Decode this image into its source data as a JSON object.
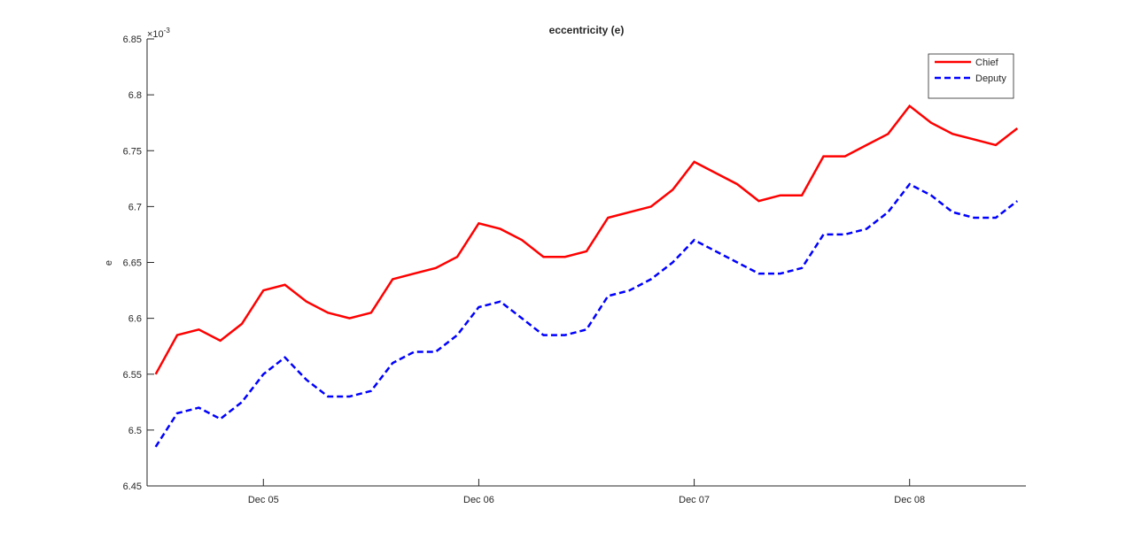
{
  "chart_data": {
    "type": "line",
    "title": "eccentricity (e)",
    "ylabel": "e",
    "y_multiplier": {
      "base": "×10",
      "exponent": "-3"
    },
    "x": [
      4.5,
      4.6,
      4.7,
      4.8,
      4.9,
      5.0,
      5.1,
      5.2,
      5.3,
      5.4,
      5.5,
      5.6,
      5.7,
      5.8,
      5.9,
      6.0,
      6.1,
      6.2,
      6.3,
      6.4,
      6.5,
      6.6,
      6.7,
      6.8,
      6.9,
      7.0,
      7.1,
      7.2,
      7.3,
      7.4,
      7.5,
      7.6,
      7.7,
      7.8,
      7.9,
      8.0,
      8.1,
      8.2,
      8.3,
      8.4,
      8.5
    ],
    "series": [
      {
        "name": "Chief",
        "color": "#ff0000",
        "dash": false,
        "values": [
          6.55,
          6.585,
          6.59,
          6.58,
          6.595,
          6.625,
          6.63,
          6.615,
          6.605,
          6.6,
          6.605,
          6.635,
          6.64,
          6.645,
          6.655,
          6.685,
          6.68,
          6.67,
          6.655,
          6.655,
          6.66,
          6.69,
          6.695,
          6.7,
          6.715,
          6.74,
          6.73,
          6.72,
          6.705,
          6.71,
          6.71,
          6.745,
          6.745,
          6.755,
          6.765,
          6.79,
          6.775,
          6.765,
          6.76,
          6.755,
          6.77
        ]
      },
      {
        "name": "Deputy",
        "color": "#0000ff",
        "dash": true,
        "values": [
          6.485,
          6.515,
          6.52,
          6.51,
          6.525,
          6.55,
          6.565,
          6.545,
          6.53,
          6.53,
          6.535,
          6.56,
          6.57,
          6.57,
          6.585,
          6.61,
          6.615,
          6.6,
          6.585,
          6.585,
          6.59,
          6.62,
          6.625,
          6.635,
          6.65,
          6.67,
          6.66,
          6.65,
          6.64,
          6.64,
          6.645,
          6.675,
          6.675,
          6.68,
          6.695,
          6.72,
          6.71,
          6.695,
          6.69,
          6.69,
          6.705
        ]
      }
    ],
    "xlim": [
      4.46,
      8.54
    ],
    "xticks": [
      {
        "value": 5,
        "label": "Dec 05"
      },
      {
        "value": 6,
        "label": "Dec 06"
      },
      {
        "value": 7,
        "label": "Dec 07"
      },
      {
        "value": 8,
        "label": "Dec 08"
      }
    ],
    "ylim": [
      6.45,
      6.85
    ],
    "yticks": [
      6.45,
      6.5,
      6.55,
      6.6,
      6.65,
      6.7,
      6.75,
      6.8,
      6.85
    ],
    "grid": false,
    "legend": "northeast"
  }
}
